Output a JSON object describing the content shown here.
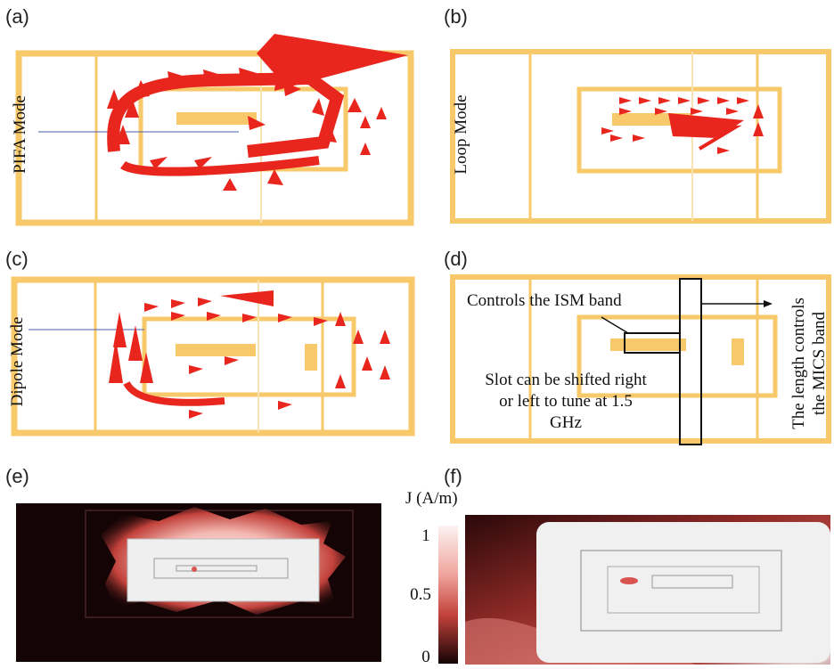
{
  "panels": {
    "a": {
      "label": "(a)",
      "mode": "PIFA Mode"
    },
    "b": {
      "label": "(b)",
      "mode": "Loop Mode"
    },
    "c": {
      "label": "(c)",
      "mode": "Dipole Mode"
    },
    "d": {
      "label": "(d)",
      "annotation_ism": "Controls the ISM band",
      "annotation_slot_line1": "Slot can be shifted right",
      "annotation_slot_line2": "or left to tune at 1.5",
      "annotation_slot_line3": "GHz",
      "annotation_length_line1": "The length controls",
      "annotation_length_line2": "the MICS band"
    },
    "e": {
      "label": "(e)"
    },
    "f": {
      "label": "(f)"
    }
  },
  "colorbar": {
    "title": "J (A/m)",
    "ticks": [
      "1",
      "0.5",
      "0"
    ]
  },
  "colors": {
    "antenna": "#f7c96a",
    "arrow": "#e8261e",
    "dark_field": "#140405",
    "hot": "#d9534f"
  }
}
